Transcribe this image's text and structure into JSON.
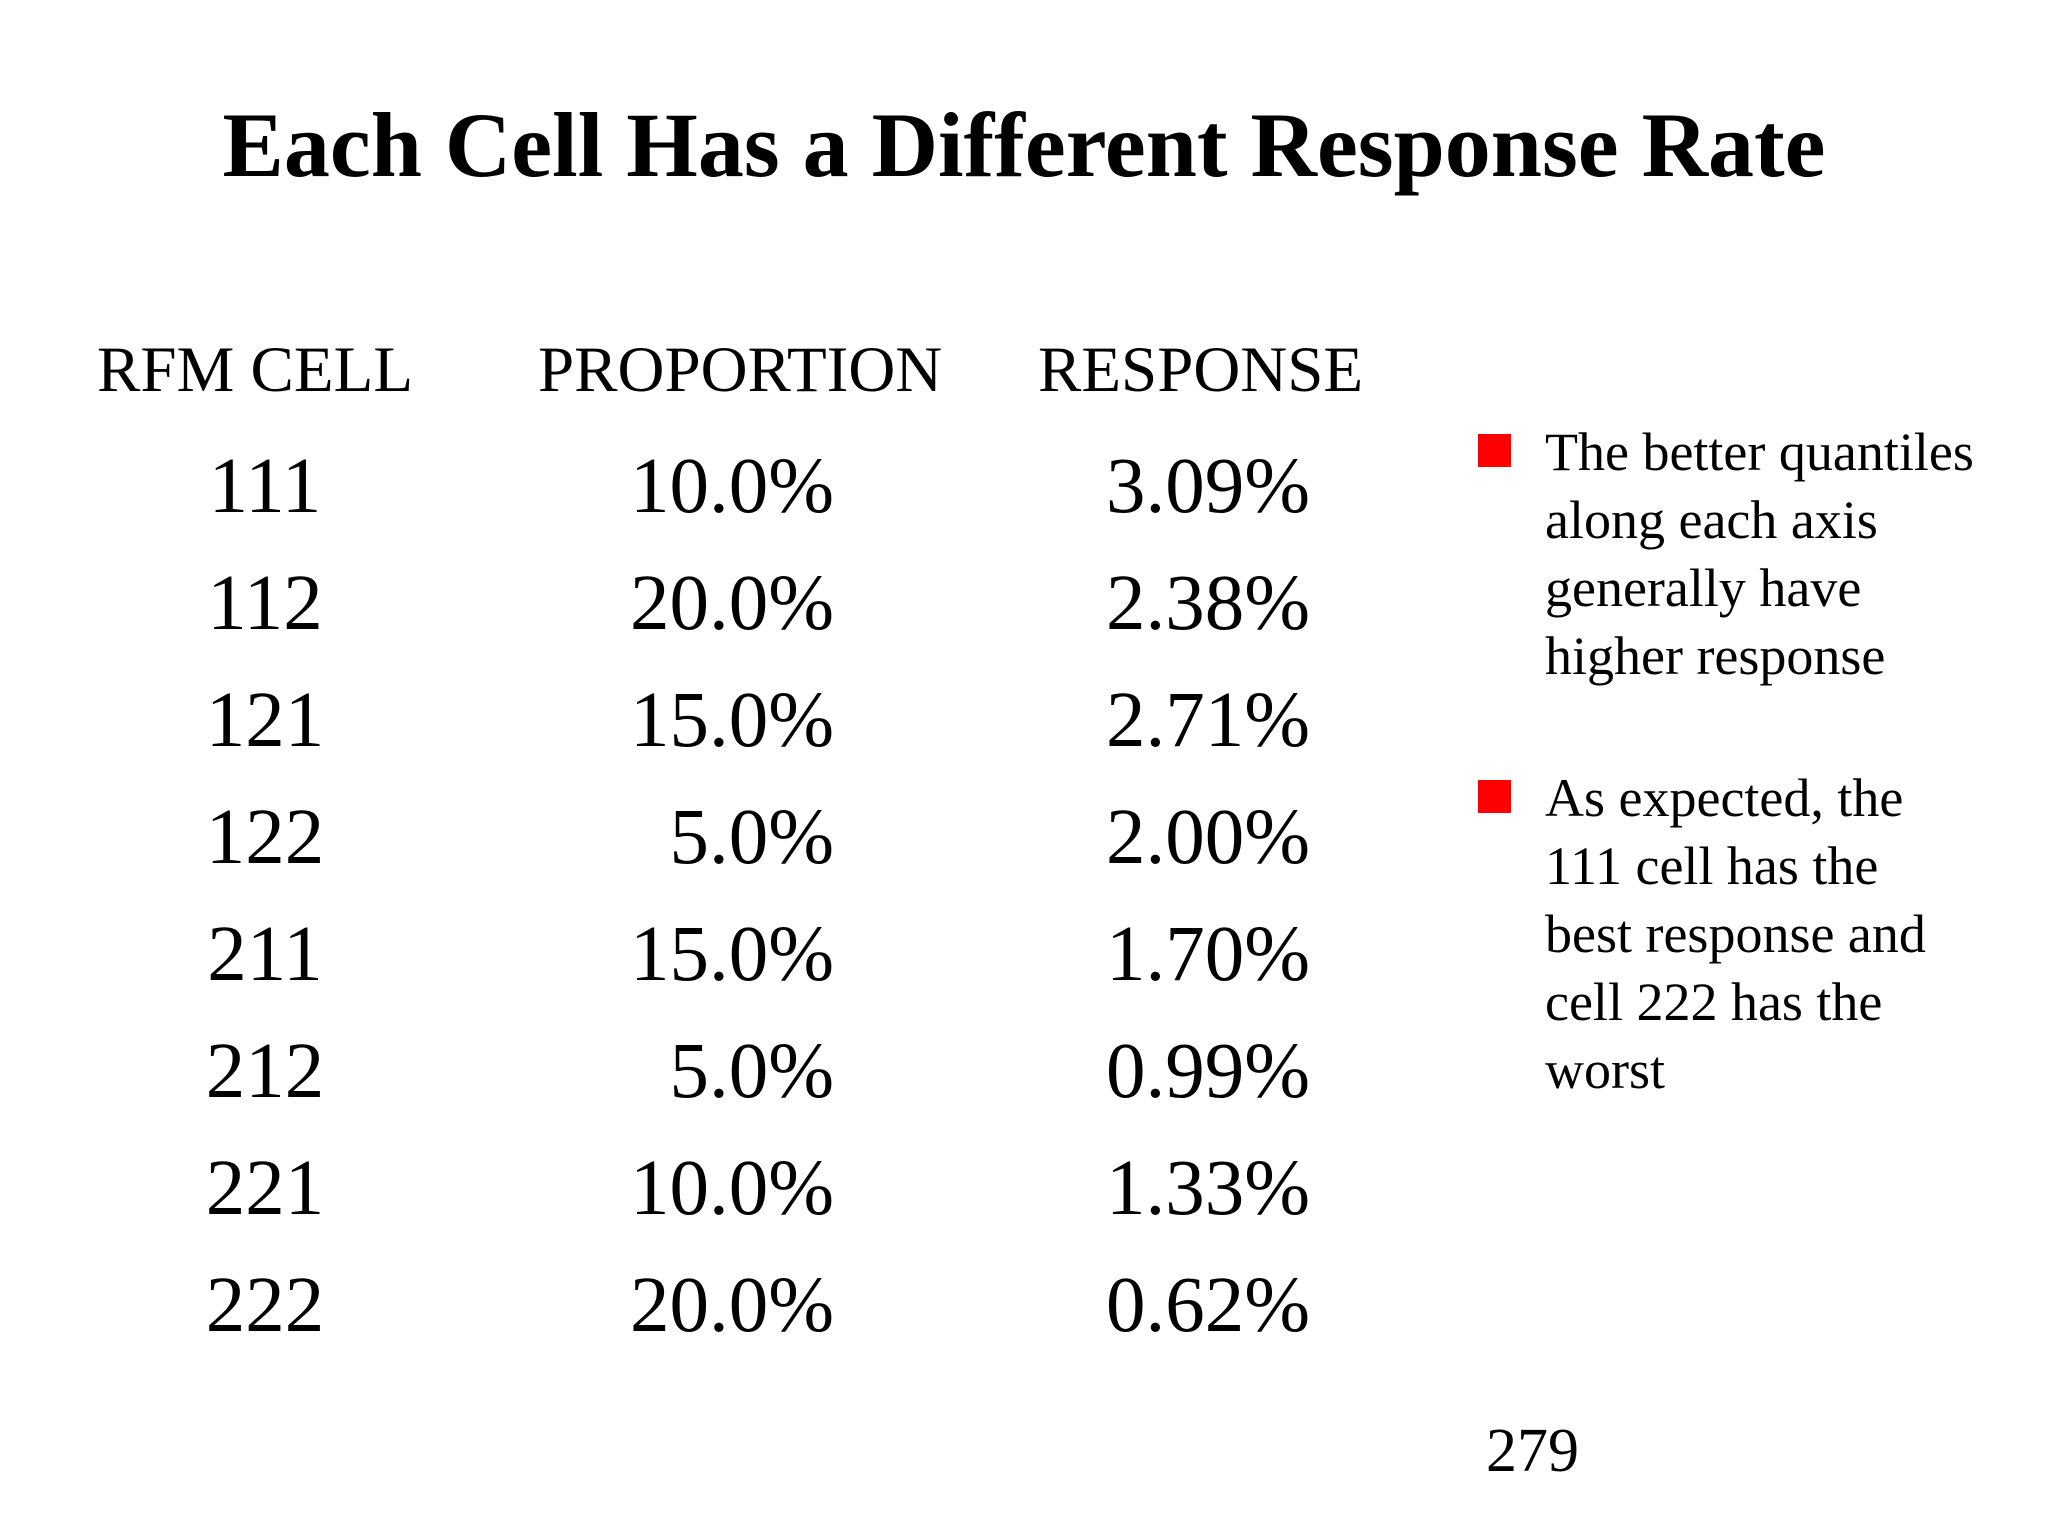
{
  "slide": {
    "title": "Each Cell Has a Different Response Rate",
    "page_number": "279"
  },
  "table": {
    "headers": [
      "RFM CELL",
      "PROPORTION",
      "RESPONSE"
    ],
    "rows": [
      {
        "cell": "111",
        "proportion": "10.0%",
        "response": "3.09%"
      },
      {
        "cell": "112",
        "proportion": "20.0%",
        "response": "2.38%"
      },
      {
        "cell": "121",
        "proportion": "15.0%",
        "response": "2.71%"
      },
      {
        "cell": "122",
        "proportion": "5.0%",
        "response": "2.00%"
      },
      {
        "cell": "211",
        "proportion": "15.0%",
        "response": "1.70%"
      },
      {
        "cell": "212",
        "proportion": "5.0%",
        "response": "0.99%"
      },
      {
        "cell": "221",
        "proportion": "10.0%",
        "response": "1.33%"
      },
      {
        "cell": "222",
        "proportion": "20.0%",
        "response": "0.62%"
      }
    ]
  },
  "bullets": [
    {
      "lines": [
        "The better quantiles",
        "along each axis",
        "generally have",
        "higher response"
      ]
    },
    {
      "lines": [
        "As expected, the",
        "111 cell has the",
        "best response and",
        "cell 222 has the",
        "worst"
      ]
    }
  ],
  "colors": {
    "bullet_marker": "#ff0000",
    "background": "#ffffff",
    "text": "#000000"
  },
  "icons": {
    "bullet_marker": "red-square-bullet-icon"
  }
}
